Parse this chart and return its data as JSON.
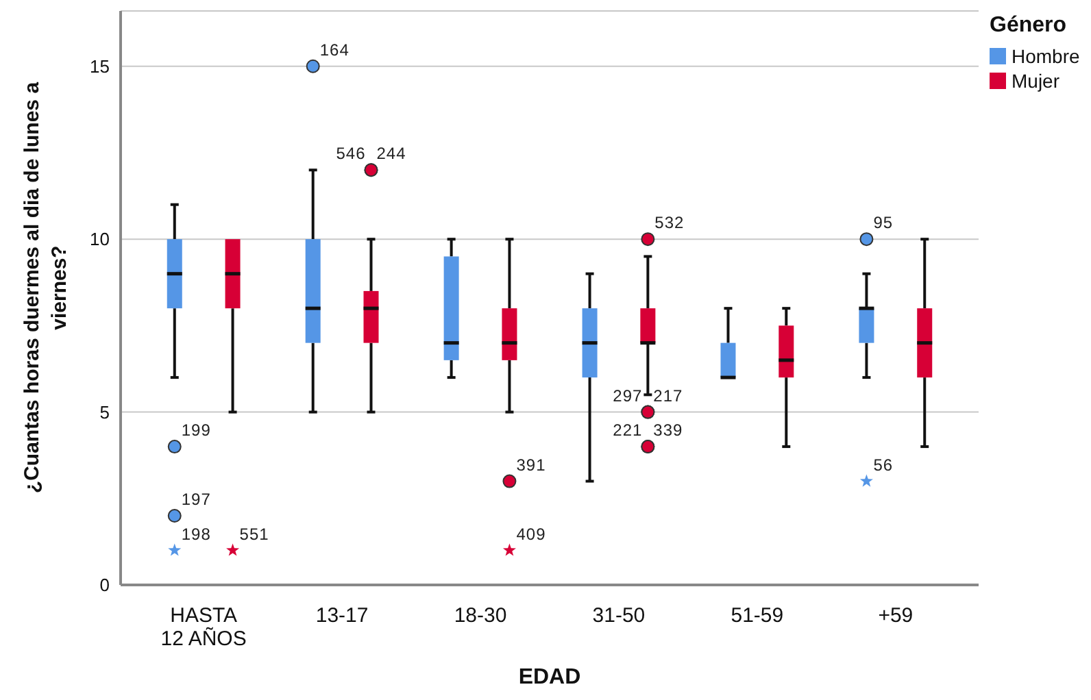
{
  "chart_data": {
    "type": "box",
    "xlabel": "EDAD",
    "ylabel": "¿Cuantas horas duermes al dia de lunes a viernes?",
    "legend_title": "Género",
    "legend": "top right",
    "grid": "y",
    "categories": [
      "HASTA 12 AÑOS",
      "13-17",
      "18-30",
      "31-50",
      "51-59",
      "+59"
    ],
    "ylim": [
      0,
      16.6
    ],
    "yticks": [
      0,
      5,
      10,
      15
    ],
    "series": [
      {
        "name": "Hombre",
        "color": "#5596e6",
        "boxes": [
          {
            "low": 6,
            "q1": 8,
            "median": 9,
            "q3": 10,
            "high": 11,
            "outliers": [
              4,
              2,
              1
            ]
          },
          {
            "low": 5,
            "q1": 7,
            "median": 8,
            "q3": 10,
            "high": 12,
            "outliers": [
              15
            ]
          },
          {
            "low": 6,
            "q1": 6.5,
            "median": 7,
            "q3": 9.5,
            "high": 10
          },
          {
            "low": 3,
            "q1": 6,
            "median": 7,
            "q3": 8,
            "high": 9
          },
          {
            "low": 6,
            "q1": 6,
            "median": 6,
            "q3": 7,
            "high": 8
          },
          {
            "low": 6,
            "q1": 7,
            "median": 8,
            "q3": 8,
            "high": 9,
            "outliers": [
              10,
              3
            ]
          }
        ]
      },
      {
        "name": "Mujer",
        "color": "#d70036",
        "boxes": [
          {
            "low": 5,
            "q1": 8,
            "median": 9,
            "q3": 10,
            "high": 10,
            "outliers": [
              1
            ]
          },
          {
            "low": 5,
            "q1": 7,
            "median": 8,
            "q3": 8.5,
            "high": 10,
            "outliers": [
              12,
              12
            ]
          },
          {
            "low": 5,
            "q1": 6.5,
            "median": 7,
            "q3": 8,
            "high": 10,
            "outliers": [
              3,
              1
            ]
          },
          {
            "low": 5.5,
            "q1": 7,
            "median": 7,
            "q3": 8,
            "high": 9.5,
            "outliers": [
              10,
              5,
              5,
              4,
              4
            ]
          },
          {
            "low": 4,
            "q1": 6,
            "median": 6.5,
            "q3": 7.5,
            "high": 8
          },
          {
            "low": 4,
            "q1": 6,
            "median": 7,
            "q3": 8,
            "high": 10
          }
        ]
      }
    ],
    "annotations": [
      "199",
      "197",
      "198",
      "164",
      "95",
      "56",
      "551",
      "546",
      "244",
      "391",
      "409",
      "532",
      "297",
      "217",
      "221",
      "339"
    ]
  }
}
